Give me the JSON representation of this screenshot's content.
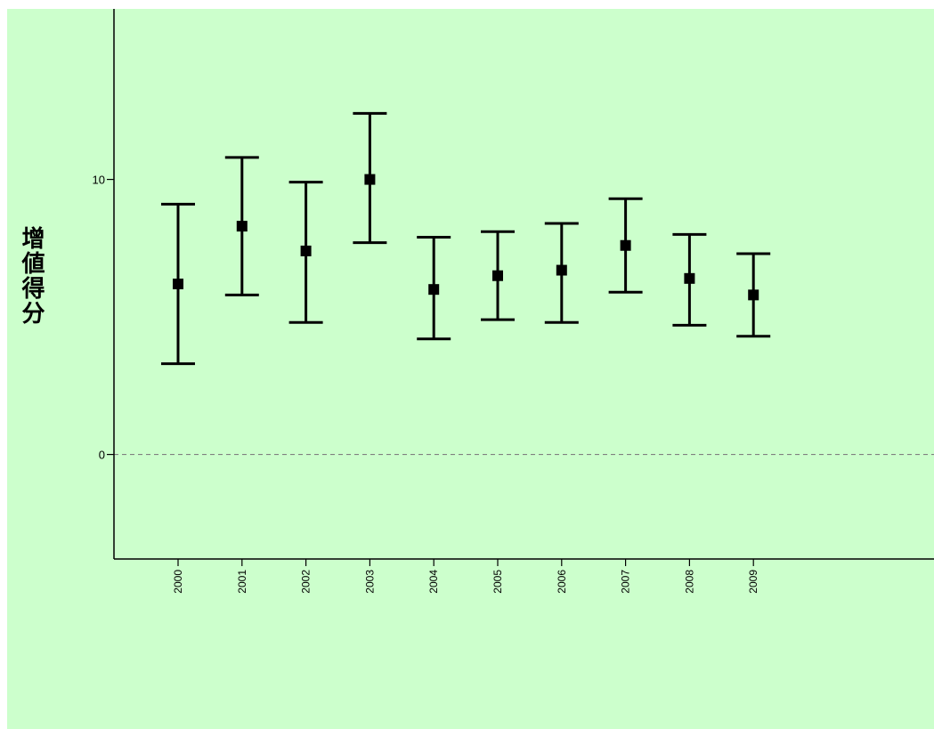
{
  "colors": {
    "plot_background": "#ccffcc",
    "page_background": "#ffffff",
    "axis": "#000000",
    "error_bar": "#000000",
    "marker": "#000000",
    "reference_line": "#808080"
  },
  "chart_data": {
    "type": "error-bar",
    "title": "",
    "xlabel": "",
    "ylabel": "增値得分",
    "categories": [
      "2000",
      "2001",
      "2002",
      "2003",
      "2004",
      "2005",
      "2006",
      "2007",
      "2008",
      "2009"
    ],
    "series": [
      {
        "mean": [
          6.2,
          8.3,
          7.4,
          10.0,
          6.0,
          6.5,
          6.7,
          7.6,
          6.4,
          5.8
        ],
        "lower": [
          3.3,
          5.8,
          4.8,
          7.7,
          4.2,
          4.9,
          4.8,
          5.9,
          4.7,
          4.3
        ],
        "upper": [
          9.1,
          10.8,
          9.9,
          12.4,
          7.9,
          8.1,
          8.4,
          9.3,
          8.0,
          7.3
        ]
      }
    ],
    "yticks": [
      0,
      10
    ],
    "ylim": [
      -3.8,
      16.2
    ],
    "reference_line": {
      "y": 0,
      "style": "dashed"
    },
    "legend": "none",
    "grid": false
  }
}
